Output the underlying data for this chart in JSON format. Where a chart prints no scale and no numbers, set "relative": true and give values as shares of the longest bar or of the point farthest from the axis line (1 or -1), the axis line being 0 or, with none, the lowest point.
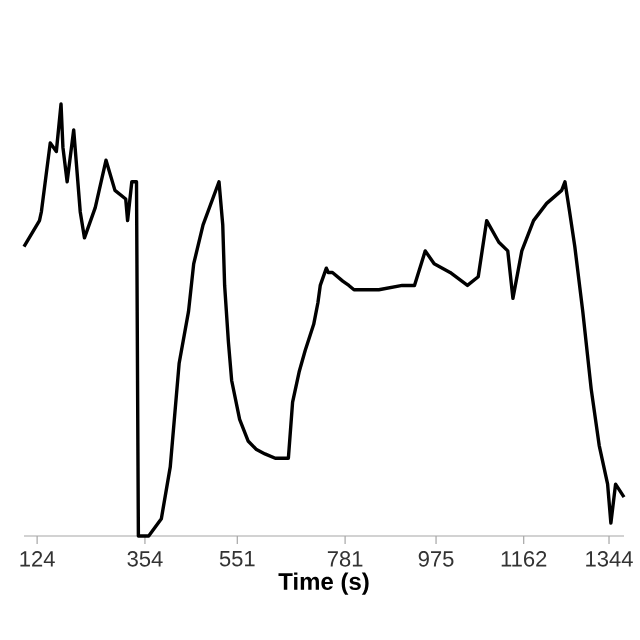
{
  "chart_data": {
    "type": "line",
    "xlabel": "Time (s)",
    "relative": true,
    "xlim": [
      96,
      1376
    ],
    "xticks": [
      124,
      354,
      551,
      781,
      975,
      1162,
      1344
    ],
    "tick_labels": "x",
    "grid": false,
    "marker": "none",
    "line_style": "solid",
    "series": [
      {
        "color": "#000000",
        "x": [
          96,
          129,
          133,
          152,
          165,
          175,
          179,
          188,
          202,
          216,
          225,
          248,
          271,
          290,
          313,
          317,
          326,
          336,
          340,
          362,
          389,
          408,
          427,
          447,
          458,
          478,
          512,
          520,
          524,
          532,
          539,
          556,
          574,
          592,
          610,
          632,
          646,
          660,
          669,
          683,
          696,
          714,
          723,
          728,
          741,
          745,
          754,
          776,
          789,
          800,
          853,
          903,
          929,
          952,
          971,
          1005,
          1042,
          1065,
          1083,
          1109,
          1128,
          1139,
          1158,
          1183,
          1211,
          1243,
          1250,
          1260,
          1271,
          1288,
          1306,
          1323,
          1341,
          1348,
          1358,
          1376
        ],
        "values": [
          0.67,
          0.73,
          0.75,
          0.91,
          0.89,
          1.0,
          0.9,
          0.82,
          0.94,
          0.75,
          0.69,
          0.76,
          0.87,
          0.8,
          0.78,
          0.73,
          0.82,
          0.82,
          0.0,
          0.0,
          0.04,
          0.16,
          0.4,
          0.52,
          0.63,
          0.72,
          0.82,
          0.72,
          0.58,
          0.45,
          0.36,
          0.27,
          0.22,
          0.2,
          0.19,
          0.18,
          0.18,
          0.18,
          0.31,
          0.38,
          0.43,
          0.49,
          0.54,
          0.58,
          0.62,
          0.61,
          0.61,
          0.59,
          0.58,
          0.57,
          0.57,
          0.58,
          0.58,
          0.66,
          0.63,
          0.61,
          0.58,
          0.6,
          0.73,
          0.68,
          0.66,
          0.55,
          0.66,
          0.73,
          0.77,
          0.8,
          0.82,
          0.75,
          0.67,
          0.52,
          0.34,
          0.21,
          0.12,
          0.03,
          0.12,
          0.09
        ]
      }
    ]
  }
}
